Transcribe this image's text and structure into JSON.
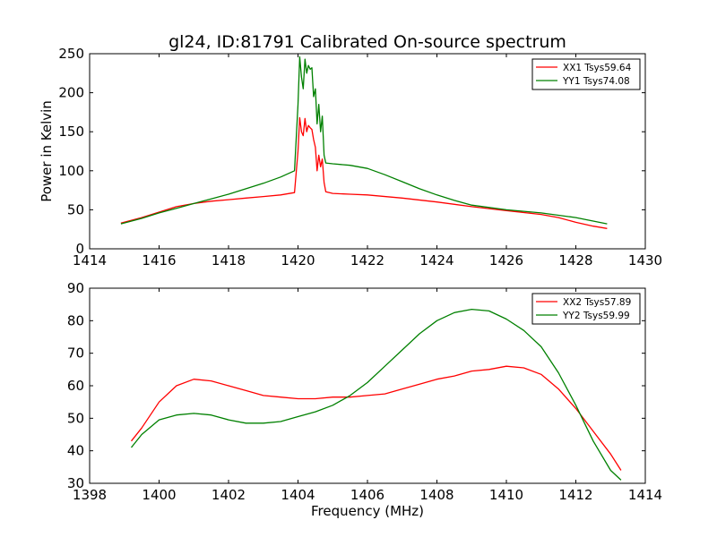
{
  "figure": {
    "title": "gl24, ID:81791 Calibrated On-source spectrum",
    "ylabel": "Power in Kelvin",
    "xlabel": "Frequency (MHz)"
  },
  "colors": {
    "red": "#ff0000",
    "green": "#008000"
  },
  "chart_data": [
    {
      "type": "line",
      "title": "gl24, ID:81791 Calibrated On-source spectrum",
      "ylabel": "Power in Kelvin",
      "xlabel": "",
      "xlim": [
        1414,
        1430
      ],
      "ylim": [
        0,
        250
      ],
      "xticks": [
        "1414",
        "1416",
        "1418",
        "1420",
        "1422",
        "1424",
        "1426",
        "1428",
        "1430"
      ],
      "yticks": [
        "0",
        "50",
        "100",
        "150",
        "200",
        "250"
      ],
      "grid": false,
      "legend_position": "top-right",
      "series": [
        {
          "name": "XX1 Tsys59.64",
          "color": "#ff0000",
          "x": [
            1414.9,
            1415.5,
            1416.0,
            1416.5,
            1417.0,
            1417.5,
            1418.0,
            1418.5,
            1419.0,
            1419.5,
            1419.9,
            1420.0,
            1420.05,
            1420.1,
            1420.15,
            1420.2,
            1420.25,
            1420.3,
            1420.35,
            1420.4,
            1420.45,
            1420.5,
            1420.55,
            1420.6,
            1420.65,
            1420.7,
            1420.75,
            1420.8,
            1421.0,
            1421.5,
            1422.0,
            1423.0,
            1424.0,
            1425.0,
            1426.0,
            1427.0,
            1427.5,
            1428.0,
            1428.5,
            1428.9
          ],
          "y": [
            33,
            40,
            47,
            54,
            58,
            61,
            63,
            65,
            67,
            69,
            72,
            125,
            168,
            150,
            145,
            167,
            150,
            158,
            155,
            153,
            140,
            130,
            100,
            120,
            105,
            115,
            85,
            73,
            71,
            70,
            69,
            65,
            60,
            54,
            49,
            44,
            40,
            34,
            29,
            26
          ]
        },
        {
          "name": "YY1 Tsys74.08",
          "color": "#008000",
          "x": [
            1414.9,
            1415.5,
            1416.0,
            1416.5,
            1417.0,
            1417.5,
            1418.0,
            1418.5,
            1419.0,
            1419.5,
            1419.9,
            1420.0,
            1420.05,
            1420.1,
            1420.15,
            1420.2,
            1420.25,
            1420.3,
            1420.35,
            1420.4,
            1420.45,
            1420.5,
            1420.55,
            1420.6,
            1420.65,
            1420.7,
            1420.75,
            1420.8,
            1421.0,
            1421.5,
            1422.0,
            1422.5,
            1423.0,
            1423.5,
            1424.0,
            1424.5,
            1425.0,
            1426.0,
            1427.0,
            1428.0,
            1428.9
          ],
          "y": [
            32,
            39,
            46,
            52,
            58,
            64,
            70,
            77,
            84,
            92,
            100,
            185,
            246,
            220,
            205,
            243,
            225,
            235,
            230,
            232,
            195,
            205,
            160,
            185,
            150,
            170,
            120,
            110,
            109,
            107,
            103,
            95,
            86,
            77,
            69,
            62,
            56,
            50,
            46,
            40,
            32
          ]
        }
      ]
    },
    {
      "type": "line",
      "title": "",
      "ylabel": "",
      "xlabel": "Frequency (MHz)",
      "xlim": [
        1398,
        1414
      ],
      "ylim": [
        30,
        90
      ],
      "xticks": [
        "1398",
        "1400",
        "1402",
        "1404",
        "1406",
        "1408",
        "1410",
        "1412",
        "1414"
      ],
      "yticks": [
        "30",
        "40",
        "50",
        "60",
        "70",
        "80",
        "90"
      ],
      "grid": false,
      "legend_position": "top-right",
      "series": [
        {
          "name": "XX2 Tsys57.89",
          "color": "#ff0000",
          "x": [
            1399.2,
            1399.5,
            1400.0,
            1400.5,
            1401.0,
            1401.5,
            1402.0,
            1402.5,
            1403.0,
            1403.5,
            1404.0,
            1404.5,
            1405.0,
            1405.5,
            1406.0,
            1406.5,
            1407.0,
            1407.5,
            1408.0,
            1408.5,
            1409.0,
            1409.5,
            1410.0,
            1410.5,
            1411.0,
            1411.5,
            1412.0,
            1412.5,
            1413.0,
            1413.3
          ],
          "y": [
            43,
            47,
            55,
            60,
            62,
            61.5,
            60,
            58.5,
            57,
            56.5,
            56,
            56,
            56.5,
            56.5,
            57,
            57.5,
            59,
            60.5,
            62,
            63,
            64.5,
            65,
            66,
            65.5,
            63.5,
            59,
            53,
            46,
            39,
            34
          ]
        },
        {
          "name": "YY2 Tsys59.99",
          "color": "#008000",
          "x": [
            1399.2,
            1399.5,
            1400.0,
            1400.5,
            1401.0,
            1401.5,
            1402.0,
            1402.5,
            1403.0,
            1403.5,
            1404.0,
            1404.5,
            1405.0,
            1405.5,
            1406.0,
            1406.5,
            1407.0,
            1407.5,
            1408.0,
            1408.5,
            1409.0,
            1409.5,
            1410.0,
            1410.5,
            1411.0,
            1411.5,
            1412.0,
            1412.5,
            1413.0,
            1413.3
          ],
          "y": [
            41,
            45,
            49.5,
            51,
            51.5,
            51,
            49.5,
            48.5,
            48.5,
            49,
            50.5,
            52,
            54,
            57,
            61,
            66,
            71,
            76,
            80,
            82.5,
            83.5,
            83,
            80.5,
            77,
            72,
            64,
            54,
            43,
            34,
            31
          ]
        }
      ]
    }
  ]
}
